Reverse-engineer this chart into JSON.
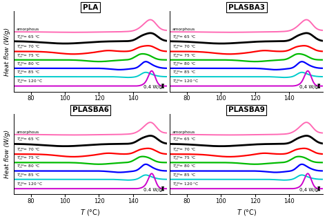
{
  "panels": [
    "PLA",
    "PLASBA3",
    "PLASBA6",
    "PLASBA9"
  ],
  "colors": [
    "#ff69b4",
    "#000000",
    "#ff0000",
    "#00bb00",
    "#0000ff",
    "#00cccc",
    "#cc00cc"
  ],
  "curve_labels": [
    "amorphous",
    "T_{cc}^{iso}= 65 °C",
    "T_{cc}^{iso}= 70 °C",
    "T_{cc}^{iso}= 75 °C",
    "T_{cc}^{iso}= 80 °C",
    "T_{cc}^{iso}= 85 °C",
    "T_{cc}^{iso}= 120 °C"
  ],
  "xmin": 70,
  "xmax": 160,
  "xticks": [
    80,
    100,
    120,
    140
  ],
  "scale_label_0": "0.4 W/g",
  "scale_label_1": "0,4 W/g",
  "xlabel": "T (°C)",
  "ylabel": "Heat flow (W/g)",
  "offsets": [
    5.8,
    4.8,
    3.7,
    2.8,
    1.9,
    1.0,
    0.0
  ],
  "linewidths": [
    1.4,
    2.0,
    1.6,
    1.6,
    1.6,
    1.4,
    1.4
  ]
}
